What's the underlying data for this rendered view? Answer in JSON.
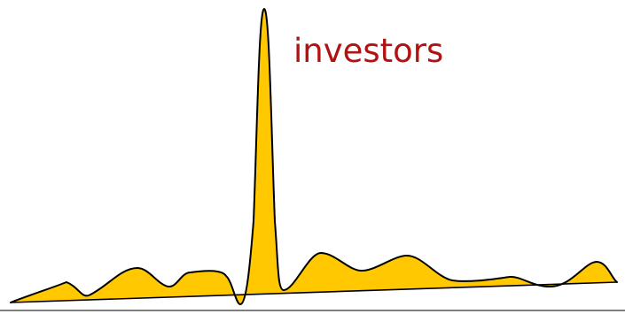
{
  "label": {
    "text": "investors",
    "color": "#b11212"
  },
  "colors": {
    "fill": "#ffc800",
    "stroke": "#000000",
    "baseline": "#555555",
    "background": "#ffffff"
  }
}
